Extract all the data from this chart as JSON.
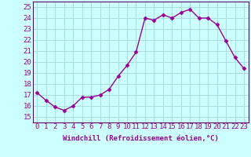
{
  "x": [
    0,
    1,
    2,
    3,
    4,
    5,
    6,
    7,
    8,
    9,
    10,
    11,
    12,
    13,
    14,
    15,
    16,
    17,
    18,
    19,
    20,
    21,
    22,
    23
  ],
  "y": [
    17.2,
    16.5,
    15.9,
    15.6,
    16.0,
    16.8,
    16.8,
    17.0,
    17.5,
    18.7,
    19.7,
    20.9,
    24.0,
    23.8,
    24.3,
    24.0,
    24.5,
    24.8,
    24.0,
    24.0,
    23.4,
    21.9,
    20.4,
    19.4
  ],
  "line_color": "#990099",
  "marker": "D",
  "marker_size": 2.5,
  "background_color": "#ccffff",
  "grid_color": "#aadddd",
  "yticks": [
    15,
    16,
    17,
    18,
    19,
    20,
    21,
    22,
    23,
    24,
    25
  ],
  "ylim": [
    14.5,
    25.5
  ],
  "xlim": [
    -0.5,
    23.5
  ],
  "xlabel": "Windchill (Refroidissement éolien,°C)",
  "xlabel_fontsize": 6.5,
  "tick_fontsize": 6.5,
  "line_width": 1.0,
  "spine_color": "#660066"
}
